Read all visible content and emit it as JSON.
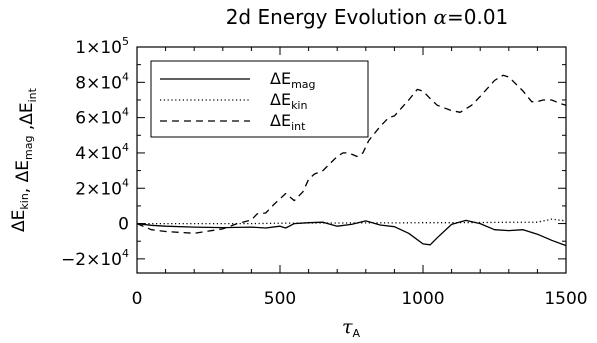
{
  "chart_data": {
    "type": "line",
    "title": "2d Energy Evolution α=0.01",
    "title_parts": {
      "main": "2d Energy Evolution ",
      "greek": "α",
      "rest": "=0.01"
    },
    "xlabel": {
      "main": "τ",
      "sub": "A"
    },
    "ylabel": [
      {
        "main": "ΔE",
        "sub": "kin"
      },
      {
        "main": ", ",
        "sub": ""
      },
      {
        "main": "ΔE",
        "sub": "mag"
      },
      {
        "main": " ,",
        "sub": ""
      },
      {
        "main": "ΔE",
        "sub": "int"
      }
    ],
    "xlim": [
      0,
      1500
    ],
    "ylim": [
      -28000,
      100000
    ],
    "xticks": [
      {
        "value": 0,
        "label": "0"
      },
      {
        "value": 500,
        "label": "500"
      },
      {
        "value": 1000,
        "label": "1000"
      },
      {
        "value": 1500,
        "label": "1500"
      }
    ],
    "yticks": [
      {
        "value": -20000,
        "mant": "−2×10",
        "exp": "4"
      },
      {
        "value": 0,
        "mant": "0",
        "exp": ""
      },
      {
        "value": 20000,
        "mant": "2×10",
        "exp": "4"
      },
      {
        "value": 40000,
        "mant": "4×10",
        "exp": "4"
      },
      {
        "value": 60000,
        "mant": "6×10",
        "exp": "4"
      },
      {
        "value": 80000,
        "mant": "8×10",
        "exp": "4"
      },
      {
        "value": 100000,
        "mant": "1×10",
        "exp": "5"
      }
    ],
    "legend_placement": "top-left",
    "series": [
      {
        "name": "ΔE_mag",
        "label_main": "ΔE",
        "label_sub": "mag",
        "dash": "solid",
        "x": [
          0,
          50,
          100,
          200,
          300,
          400,
          450,
          500,
          520,
          550,
          600,
          650,
          700,
          750,
          800,
          850,
          900,
          950,
          1000,
          1025,
          1050,
          1100,
          1150,
          1200,
          1250,
          1300,
          1350,
          1400,
          1450,
          1500
        ],
        "y": [
          0,
          -1000,
          -1500,
          -2000,
          -2300,
          -2000,
          -2500,
          -1500,
          -2500,
          0,
          500,
          800,
          -1500,
          -500,
          1500,
          -800,
          -1800,
          -5500,
          -11500,
          -12000,
          -8000,
          -500,
          1800,
          0,
          -3500,
          -4000,
          -3500,
          -6000,
          -9500,
          -12500
        ]
      },
      {
        "name": "ΔE_kin",
        "label_main": "ΔE",
        "label_sub": "kin",
        "dash": "dotted",
        "x": [
          0,
          100,
          200,
          300,
          400,
          500,
          600,
          700,
          800,
          900,
          1000,
          1100,
          1200,
          1300,
          1400,
          1450,
          1500
        ],
        "y": [
          0,
          0,
          0,
          0,
          0,
          200,
          300,
          300,
          400,
          400,
          500,
          500,
          600,
          700,
          800,
          2500,
          1500
        ]
      },
      {
        "name": "ΔE_int",
        "label_main": "ΔE",
        "label_sub": "int",
        "dash": "dashed",
        "x": [
          0,
          50,
          100,
          200,
          300,
          350,
          400,
          420,
          450,
          480,
          500,
          520,
          550,
          580,
          600,
          620,
          650,
          700,
          720,
          740,
          770,
          790,
          810,
          850,
          880,
          900,
          950,
          980,
          1000,
          1030,
          1050,
          1100,
          1130,
          1170,
          1200,
          1250,
          1280,
          1300,
          1350,
          1380,
          1400,
          1420,
          1450,
          1480,
          1500
        ],
        "y": [
          0,
          -3500,
          -4500,
          -5500,
          -3000,
          0,
          2000,
          5500,
          6000,
          11000,
          14000,
          17000,
          13000,
          18000,
          25000,
          28000,
          30000,
          38000,
          40000,
          40000,
          38000,
          40000,
          47000,
          55000,
          60000,
          61000,
          70000,
          76000,
          75000,
          70000,
          67000,
          64000,
          63000,
          67000,
          72000,
          81000,
          84000,
          83000,
          75000,
          69000,
          69000,
          70000,
          70000,
          68000,
          67000
        ]
      }
    ]
  }
}
